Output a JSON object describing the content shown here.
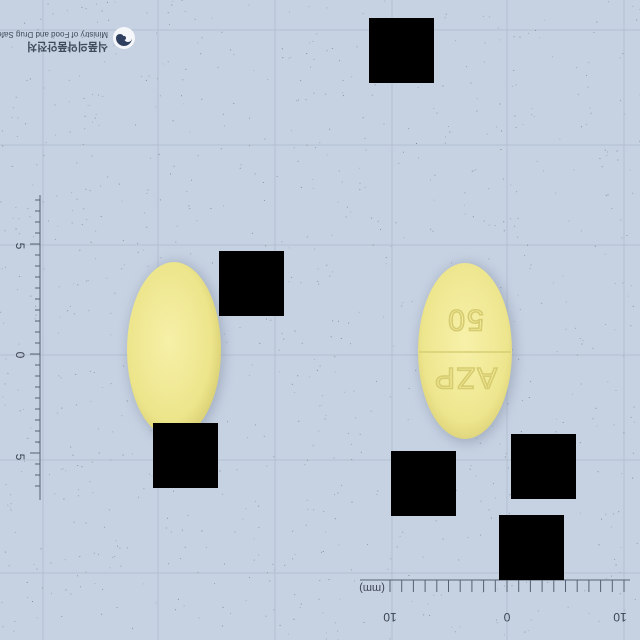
{
  "logo": {
    "korean_name": "식품의약품안전처",
    "english_name": "Ministry of Food and Drug Safety"
  },
  "pill_front": {
    "imprint_line1": "AZP",
    "imprint_line2": "50",
    "color": "#f1eb95"
  },
  "pill_back": {
    "color": "#f2eb96"
  },
  "scale_left": {
    "labels": [
      "5",
      "0",
      "5"
    ]
  },
  "scale_bottom": {
    "labels": [
      "10",
      "0",
      "10"
    ],
    "unit": "(mm)"
  },
  "colors": {
    "background": "#c6d2e2",
    "grid": "#aab8cc",
    "mask": "#000000"
  }
}
